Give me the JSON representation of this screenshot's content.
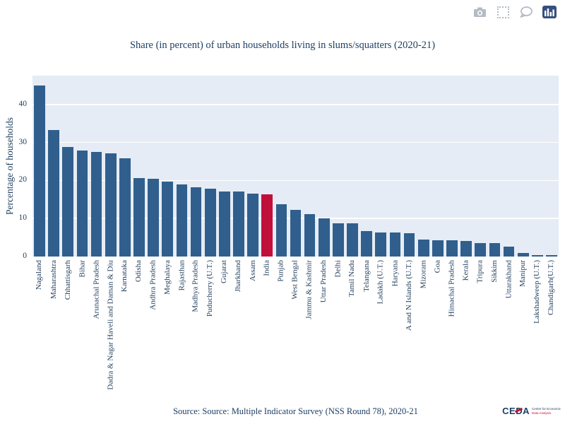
{
  "modebar": {
    "icons": [
      {
        "name": "camera",
        "tooltip": "Download plot"
      },
      {
        "name": "box-select",
        "tooltip": "Box select"
      },
      {
        "name": "comment",
        "tooltip": "Hover labels"
      },
      {
        "name": "bar-chart",
        "tooltip": "Chart view",
        "active": true
      }
    ],
    "icon_color": "#b5bac6",
    "active_bg": "#35507e"
  },
  "chart_data": {
    "type": "bar",
    "title": "Share (in percent) of urban households living in slums/squatters (2020-21)",
    "xlabel": "",
    "ylabel": "Percentage of households",
    "yticks": [
      0,
      10,
      20,
      30,
      40
    ],
    "ylim": [
      0,
      47.6
    ],
    "grid": true,
    "legend": "none",
    "plot_bg": "#e6ecf5",
    "bar_color": "#305f8d",
    "highlight": {
      "category": "India",
      "color": "#c10f3c"
    },
    "categories": [
      "Nagaland",
      "Maharashtra",
      "Chhattisgarh",
      "Bihar",
      "Arunachal Pradesh",
      "Dadra & Nagar Haveli and Daman & Diu",
      "Karnataka",
      "Odisha",
      "Andhra Pradesh",
      "Meghalaya",
      "Rajasthan",
      "Madhya Pradesh",
      "Puducherry (U.T.)",
      "Gujarat",
      "Jharkhand",
      "Assam",
      "India",
      "Punjab",
      "West Bengal",
      "Jammu & Kashmir",
      "Uttar Pradesh",
      "Delhi",
      "Tamil Nadu",
      "Telangana",
      "Ladakh (U.T.)",
      "Haryana",
      "A and N Islands (U.T.)",
      "Mizoram",
      "Goa",
      "Himachal Pradesh",
      "Kerala",
      "Tripura",
      "Sikkim",
      "Uttarakhand",
      "Manipur",
      "Lakshadweep (U.T.)",
      "Chandigarh(U.T.)"
    ],
    "values": [
      45.0,
      33.3,
      28.8,
      27.9,
      27.6,
      27.2,
      25.9,
      20.7,
      20.4,
      19.8,
      18.9,
      18.2,
      17.9,
      17.2,
      17.1,
      16.5,
      16.4,
      13.7,
      12.2,
      11.2,
      10.0,
      8.8,
      8.7,
      6.7,
      6.4,
      6.3,
      6.2,
      4.4,
      4.3,
      4.2,
      4.1,
      3.6,
      3.5,
      2.6,
      0.9,
      0.3,
      0.3
    ]
  },
  "source": {
    "label": "Source: Source: Multiple Indicator Survey (NSS Round 78), 2020-21"
  },
  "logo": {
    "word_ce": "CE",
    "word_d": "D",
    "word_a": "A",
    "tagline_line1": "Centre for Economic",
    "tagline_line2": "Data Analysis"
  }
}
